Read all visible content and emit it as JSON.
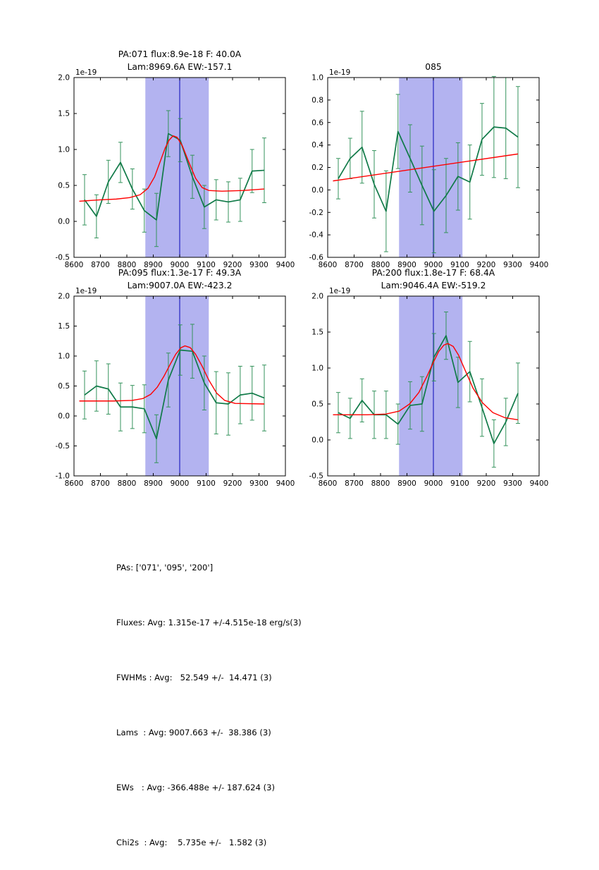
{
  "figure": {
    "offset_label": "1e-19",
    "background": "#ffffff"
  },
  "colors": {
    "band": "#b3b3f0",
    "vline": "#2424c0",
    "data": "#107a48",
    "error": "#35935c",
    "fit": "#ff0000",
    "axis": "#000000"
  },
  "chart_data": [
    {
      "type": "line",
      "title_line1": "PA:071 flux:8.9e-18 F: 40.0A",
      "title_line2": "Lam:8969.6A EW:-157.1",
      "xlim": [
        8600,
        9400
      ],
      "ylim": [
        -0.5,
        2.0
      ],
      "xticks": [
        8600,
        8700,
        8800,
        8900,
        9000,
        9100,
        9200,
        9300,
        9400
      ],
      "yticks": [
        -0.5,
        0.0,
        0.5,
        1.0,
        1.5,
        2.0
      ],
      "ytick_labels": [
        "-0.5",
        "0.0",
        "0.5",
        "1.0",
        "1.5",
        "2.0"
      ],
      "band": [
        8870,
        9110
      ],
      "vline": 9000,
      "series": {
        "name": "spectrum",
        "x": [
          8640,
          8685,
          8730,
          8776,
          8821,
          8866,
          8912,
          8957,
          9002,
          9048,
          9093,
          9138,
          9184,
          9229,
          9274,
          9320
        ],
        "y": [
          0.3,
          0.07,
          0.55,
          0.82,
          0.45,
          0.15,
          0.02,
          1.22,
          1.13,
          0.62,
          0.2,
          0.3,
          0.27,
          0.3,
          0.7,
          0.71
        ],
        "yerr": [
          0.35,
          0.3,
          0.3,
          0.28,
          0.28,
          0.3,
          0.37,
          0.32,
          0.3,
          0.3,
          0.3,
          0.28,
          0.28,
          0.3,
          0.3,
          0.45
        ]
      },
      "fit": {
        "name": "gaussian-fit",
        "x": [
          8620,
          8700,
          8760,
          8810,
          8850,
          8880,
          8905,
          8925,
          8945,
          8960,
          8975,
          8990,
          9010,
          9035,
          9060,
          9085,
          9110,
          9160,
          9240,
          9320
        ],
        "y": [
          0.28,
          0.3,
          0.31,
          0.33,
          0.37,
          0.46,
          0.62,
          0.82,
          1.02,
          1.13,
          1.19,
          1.17,
          1.05,
          0.82,
          0.6,
          0.47,
          0.43,
          0.42,
          0.43,
          0.45
        ]
      }
    },
    {
      "type": "line",
      "title_line1": "",
      "title_line2": "085",
      "xlim": [
        8600,
        9400
      ],
      "ylim": [
        -0.6,
        1.0
      ],
      "xticks": [
        8600,
        8700,
        8800,
        8900,
        9000,
        9100,
        9200,
        9300,
        9400
      ],
      "yticks": [
        -0.6,
        -0.4,
        -0.2,
        0.0,
        0.2,
        0.4,
        0.6,
        0.8,
        1.0
      ],
      "ytick_labels": [
        "-0.6",
        "-0.4",
        "-0.2",
        "0.0",
        "0.2",
        "0.4",
        "0.6",
        "0.8",
        "1.0"
      ],
      "band": [
        8870,
        9110
      ],
      "vline": 9000,
      "series": {
        "name": "spectrum",
        "x": [
          8640,
          8685,
          8730,
          8776,
          8821,
          8866,
          8912,
          8957,
          9002,
          9048,
          9093,
          9138,
          9184,
          9229,
          9274,
          9320
        ],
        "y": [
          0.1,
          0.28,
          0.38,
          0.05,
          -0.19,
          0.52,
          0.28,
          0.04,
          -0.19,
          -0.05,
          0.12,
          0.07,
          0.45,
          0.56,
          0.55,
          0.47
        ],
        "yerr": [
          0.18,
          0.18,
          0.32,
          0.3,
          0.36,
          0.33,
          0.3,
          0.35,
          0.37,
          0.33,
          0.3,
          0.33,
          0.32,
          0.45,
          0.45,
          0.45
        ]
      },
      "fit": {
        "name": "linear-fit",
        "x": [
          8620,
          9320
        ],
        "y": [
          0.08,
          0.32
        ]
      }
    },
    {
      "type": "line",
      "title_line1": "PA:095 flux:1.3e-17 F: 49.3A",
      "title_line2": "Lam:9007.0A EW:-423.2",
      "xlim": [
        8600,
        9400
      ],
      "ylim": [
        -1.0,
        2.0
      ],
      "xticks": [
        8600,
        8700,
        8800,
        8900,
        9000,
        9100,
        9200,
        9300,
        9400
      ],
      "yticks": [
        -1.0,
        -0.5,
        0.0,
        0.5,
        1.0,
        1.5,
        2.0
      ],
      "ytick_labels": [
        "-1.0",
        "-0.5",
        "0.0",
        "0.5",
        "1.0",
        "1.5",
        "2.0"
      ],
      "band": [
        8870,
        9110
      ],
      "vline": 9000,
      "series": {
        "name": "spectrum",
        "x": [
          8640,
          8685,
          8730,
          8776,
          8821,
          8866,
          8912,
          8957,
          9002,
          9048,
          9093,
          9138,
          9184,
          9229,
          9274,
          9320
        ],
        "y": [
          0.35,
          0.5,
          0.45,
          0.15,
          0.15,
          0.12,
          -0.38,
          0.6,
          1.1,
          1.08,
          0.55,
          0.22,
          0.2,
          0.35,
          0.38,
          0.3
        ],
        "yerr": [
          0.4,
          0.42,
          0.42,
          0.4,
          0.36,
          0.4,
          0.4,
          0.45,
          0.42,
          0.45,
          0.45,
          0.52,
          0.52,
          0.48,
          0.45,
          0.55
        ]
      },
      "fit": {
        "name": "gaussian-fit",
        "x": [
          8620,
          8750,
          8820,
          8860,
          8890,
          8915,
          8940,
          8965,
          8985,
          9005,
          9020,
          9040,
          9060,
          9085,
          9110,
          9140,
          9170,
          9210,
          9320
        ],
        "y": [
          0.25,
          0.25,
          0.26,
          0.29,
          0.36,
          0.48,
          0.66,
          0.87,
          1.03,
          1.14,
          1.17,
          1.14,
          1.03,
          0.83,
          0.6,
          0.38,
          0.26,
          0.21,
          0.2
        ]
      }
    },
    {
      "type": "line",
      "title_line1": "PA:200 flux:1.8e-17 F: 68.4A",
      "title_line2": "Lam:9046.4A EW:-519.2",
      "xlim": [
        8600,
        9400
      ],
      "ylim": [
        -0.5,
        2.0
      ],
      "xticks": [
        8600,
        8700,
        8800,
        8900,
        9000,
        9100,
        9200,
        9300,
        9400
      ],
      "yticks": [
        -0.5,
        0.0,
        0.5,
        1.0,
        1.5,
        2.0
      ],
      "ytick_labels": [
        "-0.5",
        "0.0",
        "0.5",
        "1.0",
        "1.5",
        "2.0"
      ],
      "band": [
        8870,
        9110
      ],
      "vline": 9000,
      "series": {
        "name": "spectrum",
        "x": [
          8640,
          8685,
          8730,
          8776,
          8821,
          8866,
          8912,
          8957,
          9002,
          9048,
          9093,
          9138,
          9184,
          9229,
          9274,
          9320
        ],
        "y": [
          0.38,
          0.3,
          0.55,
          0.35,
          0.35,
          0.22,
          0.48,
          0.5,
          1.15,
          1.45,
          0.8,
          0.95,
          0.45,
          -0.05,
          0.25,
          0.65
        ],
        "yerr": [
          0.28,
          0.28,
          0.3,
          0.33,
          0.33,
          0.28,
          0.33,
          0.38,
          0.33,
          0.33,
          0.35,
          0.42,
          0.4,
          0.33,
          0.33,
          0.42
        ]
      },
      "fit": {
        "name": "gaussian-fit",
        "x": [
          8620,
          8750,
          8820,
          8870,
          8910,
          8945,
          8975,
          9000,
          9020,
          9040,
          9055,
          9075,
          9095,
          9120,
          9150,
          9185,
          9225,
          9270,
          9320
        ],
        "y": [
          0.35,
          0.35,
          0.36,
          0.4,
          0.5,
          0.66,
          0.88,
          1.08,
          1.23,
          1.32,
          1.34,
          1.3,
          1.18,
          0.97,
          0.72,
          0.52,
          0.38,
          0.31,
          0.28
        ]
      }
    }
  ],
  "summary": {
    "lines": [
      "PAs: ['071', '095', '200']",
      "Fluxes: Avg: 1.315e-17 +/-4.515e-18 erg/s(3)",
      "FWHMs : Avg:   52.549 +/-  14.471 (3)",
      "Lams  : Avg: 9007.663 +/-  38.386 (3)",
      "EWs   : Avg: -366.488e +/- 187.624 (3)",
      "Chi2s  : Avg:    5.735e +/-   1.582 (3)"
    ]
  }
}
